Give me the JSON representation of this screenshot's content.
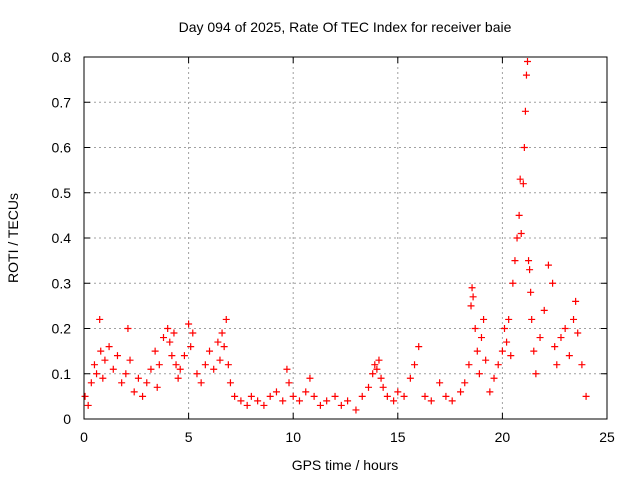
{
  "chart_data": {
    "type": "scatter",
    "title": "Day 094 of 2025, Rate Of TEC Index for receiver baie",
    "xlabel": "GPS time / hours",
    "ylabel": "ROTI / TECUs",
    "xlim": [
      0,
      25
    ],
    "ylim": [
      0,
      0.8
    ],
    "xticks": [
      0,
      5,
      10,
      15,
      20,
      25
    ],
    "yticks": [
      0,
      0.1,
      0.2,
      0.3,
      0.4,
      0.5,
      0.6,
      0.7,
      0.8
    ],
    "xtick_labels": [
      "0",
      "5",
      "10",
      "15",
      "20",
      "25"
    ],
    "ytick_labels": [
      "0",
      "0.1",
      "0.2",
      "0.3",
      "0.4",
      "0.5",
      "0.6",
      "0.7",
      "0.8"
    ],
    "grid": true,
    "marker": "+",
    "color": "#ff0000",
    "series": [
      {
        "x": [
          0.05,
          0.2,
          0.35,
          0.5,
          0.6,
          0.75,
          0.8,
          0.9,
          1.0,
          1.2,
          1.4,
          1.6,
          1.8,
          2.0,
          2.1,
          2.2,
          2.4,
          2.6,
          2.8,
          3.0,
          3.2,
          3.4,
          3.5,
          3.6,
          3.8,
          4.0,
          4.1,
          4.2,
          4.3,
          4.4,
          4.5,
          4.6,
          4.8,
          5.0,
          5.1,
          5.2,
          5.4,
          5.6,
          5.8,
          6.0,
          6.2,
          6.4,
          6.5,
          6.6,
          6.7,
          6.8,
          6.9,
          7.0,
          7.2,
          7.5,
          7.8,
          8.0,
          8.3,
          8.6,
          8.9,
          9.2,
          9.5,
          9.7,
          9.8,
          10.0,
          10.3,
          10.6,
          10.8,
          11.0,
          11.3,
          11.6,
          12.0,
          12.3,
          12.6,
          13.0,
          13.3,
          13.6,
          13.8,
          13.9,
          14.0,
          14.1,
          14.2,
          14.3,
          14.5,
          14.8,
          15.0,
          15.3,
          15.6,
          15.8,
          16.0,
          16.3,
          16.6,
          17.0,
          17.3,
          17.6,
          18.0,
          18.2,
          18.4,
          18.5,
          18.55,
          18.6,
          18.7,
          18.8,
          18.9,
          19.0,
          19.1,
          19.2,
          19.4,
          19.6,
          19.8,
          20.0,
          20.1,
          20.2,
          20.3,
          20.4,
          20.5,
          20.6,
          20.7,
          20.8,
          20.85,
          20.9,
          21.0,
          21.05,
          21.1,
          21.15,
          21.2,
          21.25,
          21.3,
          21.35,
          21.4,
          21.5,
          21.6,
          21.8,
          22.0,
          22.2,
          22.4,
          22.5,
          22.6,
          22.8,
          23.0,
          23.2,
          23.4,
          23.5,
          23.6,
          23.8,
          24.0
        ],
        "y": [
          0.05,
          0.03,
          0.08,
          0.12,
          0.1,
          0.22,
          0.15,
          0.09,
          0.13,
          0.16,
          0.11,
          0.14,
          0.08,
          0.1,
          0.2,
          0.13,
          0.06,
          0.09,
          0.05,
          0.08,
          0.11,
          0.15,
          0.07,
          0.12,
          0.18,
          0.2,
          0.17,
          0.14,
          0.19,
          0.12,
          0.09,
          0.11,
          0.14,
          0.21,
          0.16,
          0.19,
          0.1,
          0.08,
          0.12,
          0.15,
          0.11,
          0.17,
          0.13,
          0.19,
          0.16,
          0.22,
          0.12,
          0.08,
          0.05,
          0.04,
          0.03,
          0.05,
          0.04,
          0.03,
          0.05,
          0.06,
          0.04,
          0.11,
          0.08,
          0.05,
          0.04,
          0.06,
          0.09,
          0.05,
          0.03,
          0.04,
          0.05,
          0.03,
          0.04,
          0.02,
          0.05,
          0.07,
          0.1,
          0.12,
          0.11,
          0.13,
          0.09,
          0.07,
          0.05,
          0.04,
          0.06,
          0.05,
          0.09,
          0.12,
          0.16,
          0.05,
          0.04,
          0.08,
          0.05,
          0.04,
          0.06,
          0.08,
          0.12,
          0.25,
          0.29,
          0.27,
          0.2,
          0.15,
          0.1,
          0.18,
          0.22,
          0.13,
          0.06,
          0.09,
          0.12,
          0.15,
          0.2,
          0.17,
          0.22,
          0.14,
          0.3,
          0.35,
          0.4,
          0.45,
          0.53,
          0.41,
          0.52,
          0.6,
          0.68,
          0.76,
          0.79,
          0.35,
          0.33,
          0.28,
          0.22,
          0.15,
          0.1,
          0.18,
          0.24,
          0.34,
          0.3,
          0.16,
          0.12,
          0.18,
          0.2,
          0.14,
          0.22,
          0.26,
          0.19,
          0.12,
          0.05
        ]
      }
    ]
  }
}
